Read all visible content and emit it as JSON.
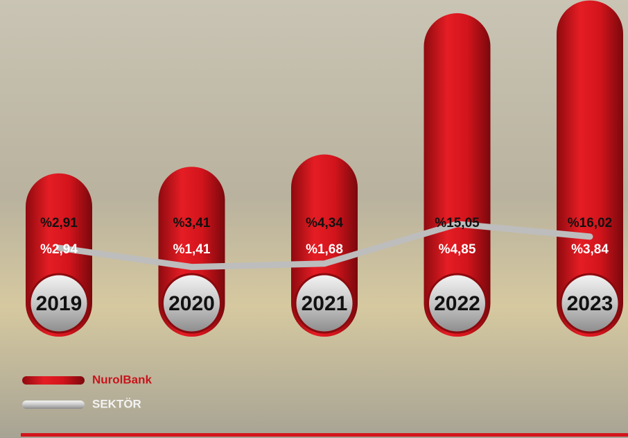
{
  "chart_data": {
    "type": "bar",
    "categories": [
      "2019",
      "2020",
      "2021",
      "2022",
      "2023"
    ],
    "series": [
      {
        "name": "NurolBank",
        "type": "bar",
        "color": "#d3141c",
        "values": [
          2.91,
          3.41,
          4.34,
          15.05,
          16.02
        ],
        "value_labels": [
          "%2,91",
          "%3,41",
          "%4,34",
          "%15,05",
          "%16,02"
        ]
      },
      {
        "name": "SEKTÖR",
        "type": "line",
        "color": "#bdbdbd",
        "values": [
          2.94,
          1.41,
          1.68,
          4.85,
          3.84
        ],
        "value_labels": [
          "%2,94",
          "%1,41",
          "%1,68",
          "%4,85",
          "%3,84"
        ]
      }
    ]
  }
}
